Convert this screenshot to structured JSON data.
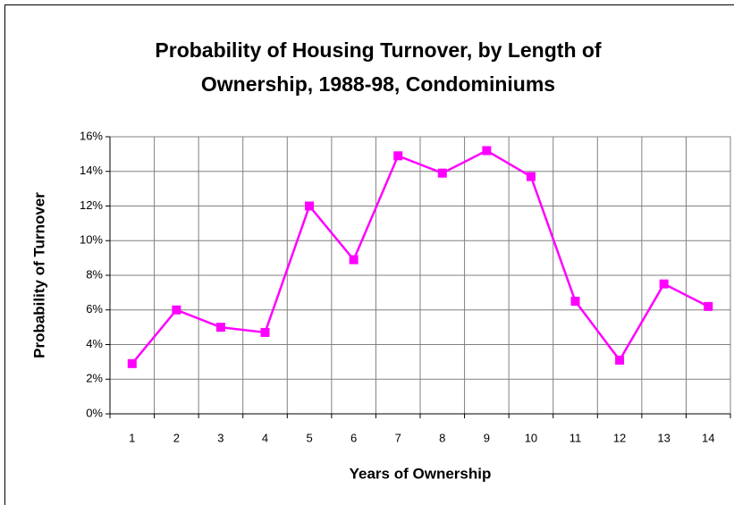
{
  "chart_data": {
    "type": "line",
    "title": [
      "Probability of Housing Turnover, by Length of",
      "Ownership, 1988-98, Condominiums"
    ],
    "x_label": "Years of Ownership",
    "y_label": "Probability of Turnover",
    "categories": [
      "1",
      "2",
      "3",
      "4",
      "5",
      "6",
      "7",
      "8",
      "9",
      "10",
      "11",
      "12",
      "13",
      "14"
    ],
    "series": [
      {
        "name": "Condominiums",
        "color": "#ff00ff",
        "values": [
          2.9,
          6.0,
          5.0,
          4.7,
          12.0,
          8.9,
          14.9,
          13.9,
          15.2,
          13.7,
          6.5,
          3.1,
          7.5,
          6.2
        ]
      }
    ],
    "ylim": [
      0,
      16
    ],
    "yticks": [
      {
        "value": 0,
        "label": "0%"
      },
      {
        "value": 2,
        "label": "2%"
      },
      {
        "value": 4,
        "label": "4%"
      },
      {
        "value": 6,
        "label": "6%"
      },
      {
        "value": 8,
        "label": "8%"
      },
      {
        "value": 10,
        "label": "10%"
      },
      {
        "value": 12,
        "label": "12%"
      },
      {
        "value": 14,
        "label": "14%"
      },
      {
        "value": 16,
        "label": "16%"
      }
    ],
    "grid": true
  }
}
